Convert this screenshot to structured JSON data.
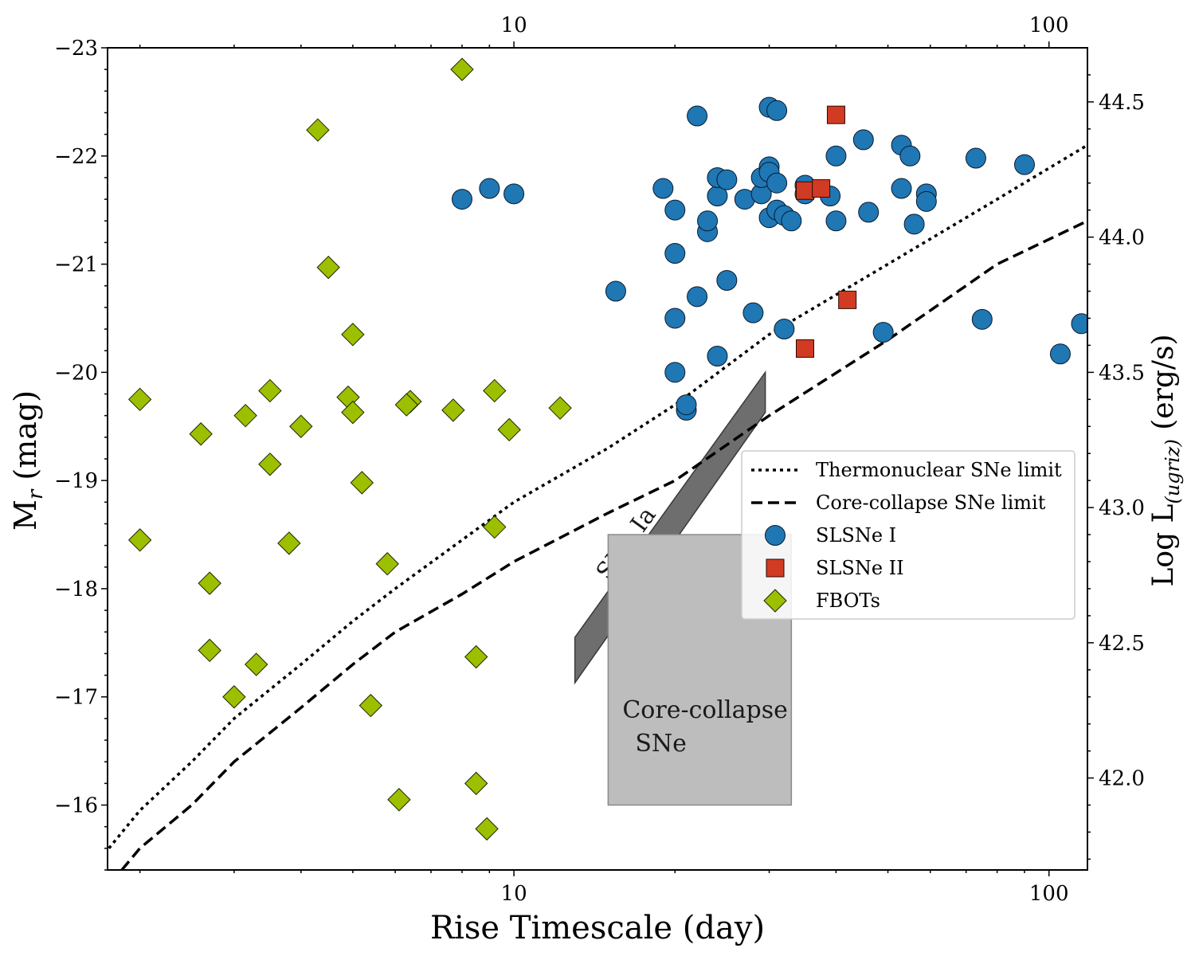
{
  "chart_data": {
    "type": "scatter",
    "x_scale": "log",
    "xlim": [
      1.74,
      118
    ],
    "ylim": [
      -15.4,
      -23.0
    ],
    "y_inverted": true,
    "xlabel": "Rise Timescale (day)",
    "ylabel": "M",
    "ylabel_sub": "r",
    "ylabel_suffix": " (mag)",
    "y2label": "Log L",
    "y2label_sub": "(ugriz)",
    "y2label_suffix": " (erg/s)",
    "x_ticks": [
      10,
      100
    ],
    "x_tick_labels": [
      "10",
      "100"
    ],
    "y_ticks": [
      -23,
      -22,
      -21,
      -20,
      -19,
      -18,
      -17,
      -16
    ],
    "y_tick_labels": [
      "−23",
      "−22",
      "−21",
      "−20",
      "−19",
      "−18",
      "−17",
      "−16"
    ],
    "y2_ticks": [
      42.0,
      42.5,
      43.0,
      43.5,
      44.0,
      44.5
    ],
    "y2_tick_labels": [
      "42.0",
      "42.5",
      "43.0",
      "43.5",
      "44.0",
      "44.5"
    ],
    "y2_from_mag": {
      "offset": 42.3,
      "factor": -0.4,
      "ref_mag": -17
    },
    "legend_position": "center-right",
    "grid": false,
    "colors": {
      "slsne1": "#1f77b4",
      "slsne2": "#d13b23",
      "fbots": "#9cbf00",
      "snia_band": "#555555",
      "cc_region": "#bdbdbd"
    },
    "series": [
      {
        "name": "Thermonuclear SNe limit",
        "kind": "line",
        "style": "dotted",
        "points": [
          [
            1.75,
            -15.6
          ],
          [
            2,
            -15.95
          ],
          [
            2.5,
            -16.4
          ],
          [
            3,
            -16.8
          ],
          [
            4,
            -17.3
          ],
          [
            5,
            -17.7
          ],
          [
            6,
            -18.0
          ],
          [
            8,
            -18.45
          ],
          [
            10,
            -18.8
          ],
          [
            15,
            -19.3
          ],
          [
            20,
            -19.7
          ],
          [
            30,
            -20.35
          ],
          [
            50,
            -21.0
          ],
          [
            80,
            -21.6
          ],
          [
            118,
            -22.1
          ]
        ]
      },
      {
        "name": "Core-collapse SNe limit",
        "kind": "line",
        "style": "dashed",
        "points": [
          [
            1.85,
            -15.4
          ],
          [
            2,
            -15.6
          ],
          [
            2.5,
            -16.0
          ],
          [
            3,
            -16.4
          ],
          [
            4,
            -16.9
          ],
          [
            5,
            -17.3
          ],
          [
            6,
            -17.6
          ],
          [
            8,
            -17.95
          ],
          [
            10,
            -18.25
          ],
          [
            15,
            -18.7
          ],
          [
            20,
            -19.0
          ],
          [
            30,
            -19.6
          ],
          [
            50,
            -20.3
          ],
          [
            80,
            -21.0
          ],
          [
            118,
            -21.4
          ]
        ]
      },
      {
        "name": "SLSNe I",
        "kind": "scatter",
        "marker": "circle",
        "points": [
          [
            8.0,
            -21.6
          ],
          [
            9.0,
            -21.7
          ],
          [
            10.0,
            -21.65
          ],
          [
            15.5,
            -20.75
          ],
          [
            19.0,
            -21.7
          ],
          [
            20.0,
            -21.5
          ],
          [
            20.0,
            -21.1
          ],
          [
            20.0,
            -20.5
          ],
          [
            20.0,
            -20.0
          ],
          [
            21.0,
            -19.65
          ],
          [
            21.0,
            -19.7
          ],
          [
            22.0,
            -22.37
          ],
          [
            22.0,
            -20.7
          ],
          [
            23.0,
            -21.3
          ],
          [
            23.0,
            -21.4
          ],
          [
            24.0,
            -21.63
          ],
          [
            24.0,
            -21.8
          ],
          [
            24.0,
            -20.15
          ],
          [
            25.0,
            -21.78
          ],
          [
            25.0,
            -20.85
          ],
          [
            27.0,
            -21.6
          ],
          [
            28.0,
            -20.55
          ],
          [
            29.0,
            -21.65
          ],
          [
            29.0,
            -21.8
          ],
          [
            30.0,
            -22.45
          ],
          [
            30.0,
            -21.9
          ],
          [
            30.0,
            -21.85
          ],
          [
            30.0,
            -21.43
          ],
          [
            31.0,
            -22.42
          ],
          [
            31.0,
            -21.75
          ],
          [
            31.0,
            -21.5
          ],
          [
            32.0,
            -21.45
          ],
          [
            32.0,
            -20.4
          ],
          [
            33.0,
            -21.4
          ],
          [
            35.0,
            -21.73
          ],
          [
            35.0,
            -21.65
          ],
          [
            39.0,
            -21.63
          ],
          [
            40.0,
            -22.0
          ],
          [
            40.0,
            -21.4
          ],
          [
            45.0,
            -22.15
          ],
          [
            46.0,
            -21.48
          ],
          [
            49.0,
            -20.37
          ],
          [
            53.0,
            -21.7
          ],
          [
            53.0,
            -22.1
          ],
          [
            55.0,
            -22.0
          ],
          [
            56.0,
            -21.37
          ],
          [
            59.0,
            -21.65
          ],
          [
            59.0,
            -21.58
          ],
          [
            73.0,
            -21.98
          ],
          [
            75.0,
            -20.49
          ],
          [
            90.0,
            -21.92
          ],
          [
            105.0,
            -20.17
          ],
          [
            115.0,
            -20.45
          ]
        ]
      },
      {
        "name": "SLSNe II",
        "kind": "scatter",
        "marker": "square",
        "points": [
          [
            40.0,
            -22.38
          ],
          [
            35.0,
            -21.68
          ],
          [
            37.5,
            -21.7
          ],
          [
            42.0,
            -20.67
          ],
          [
            35.0,
            -20.22
          ]
        ]
      },
      {
        "name": "FBOTs",
        "kind": "scatter",
        "marker": "diamond",
        "points": [
          [
            8.0,
            -22.8
          ],
          [
            4.3,
            -22.24
          ],
          [
            2.0,
            -19.75
          ],
          [
            2.6,
            -19.43
          ],
          [
            3.15,
            -19.6
          ],
          [
            3.5,
            -19.83
          ],
          [
            3.5,
            -19.15
          ],
          [
            4.0,
            -19.5
          ],
          [
            4.9,
            -19.77
          ],
          [
            5.0,
            -19.63
          ],
          [
            5.0,
            -20.35
          ],
          [
            4.5,
            -20.97
          ],
          [
            5.2,
            -18.98
          ],
          [
            6.4,
            -19.73
          ],
          [
            6.3,
            -19.7
          ],
          [
            7.7,
            -19.65
          ],
          [
            9.2,
            -19.83
          ],
          [
            9.8,
            -19.47
          ],
          [
            12.2,
            -19.67
          ],
          [
            2.0,
            -18.45
          ],
          [
            2.7,
            -18.05
          ],
          [
            3.8,
            -18.42
          ],
          [
            5.8,
            -18.23
          ],
          [
            9.2,
            -18.57
          ],
          [
            2.7,
            -17.43
          ],
          [
            3.3,
            -17.3
          ],
          [
            3.0,
            -17.0
          ],
          [
            5.4,
            -16.92
          ],
          [
            8.5,
            -17.37
          ],
          [
            6.1,
            -16.05
          ],
          [
            8.5,
            -16.2
          ],
          [
            8.9,
            -15.78
          ]
        ]
      }
    ],
    "regions": [
      {
        "name": "SNe Ia",
        "label": "SNe Ia",
        "kind": "band",
        "polygon": [
          [
            13.0,
            -17.55
          ],
          [
            29.5,
            -20.0
          ],
          [
            29.5,
            -19.63
          ],
          [
            13.0,
            -17.13
          ]
        ]
      },
      {
        "name": "Core-collapse SNe",
        "label_lines": [
          "Core-collapse",
          "SNe"
        ],
        "kind": "rect",
        "x_range": [
          15.0,
          33.0
        ],
        "y_range": [
          -16.0,
          -18.5
        ]
      }
    ]
  }
}
